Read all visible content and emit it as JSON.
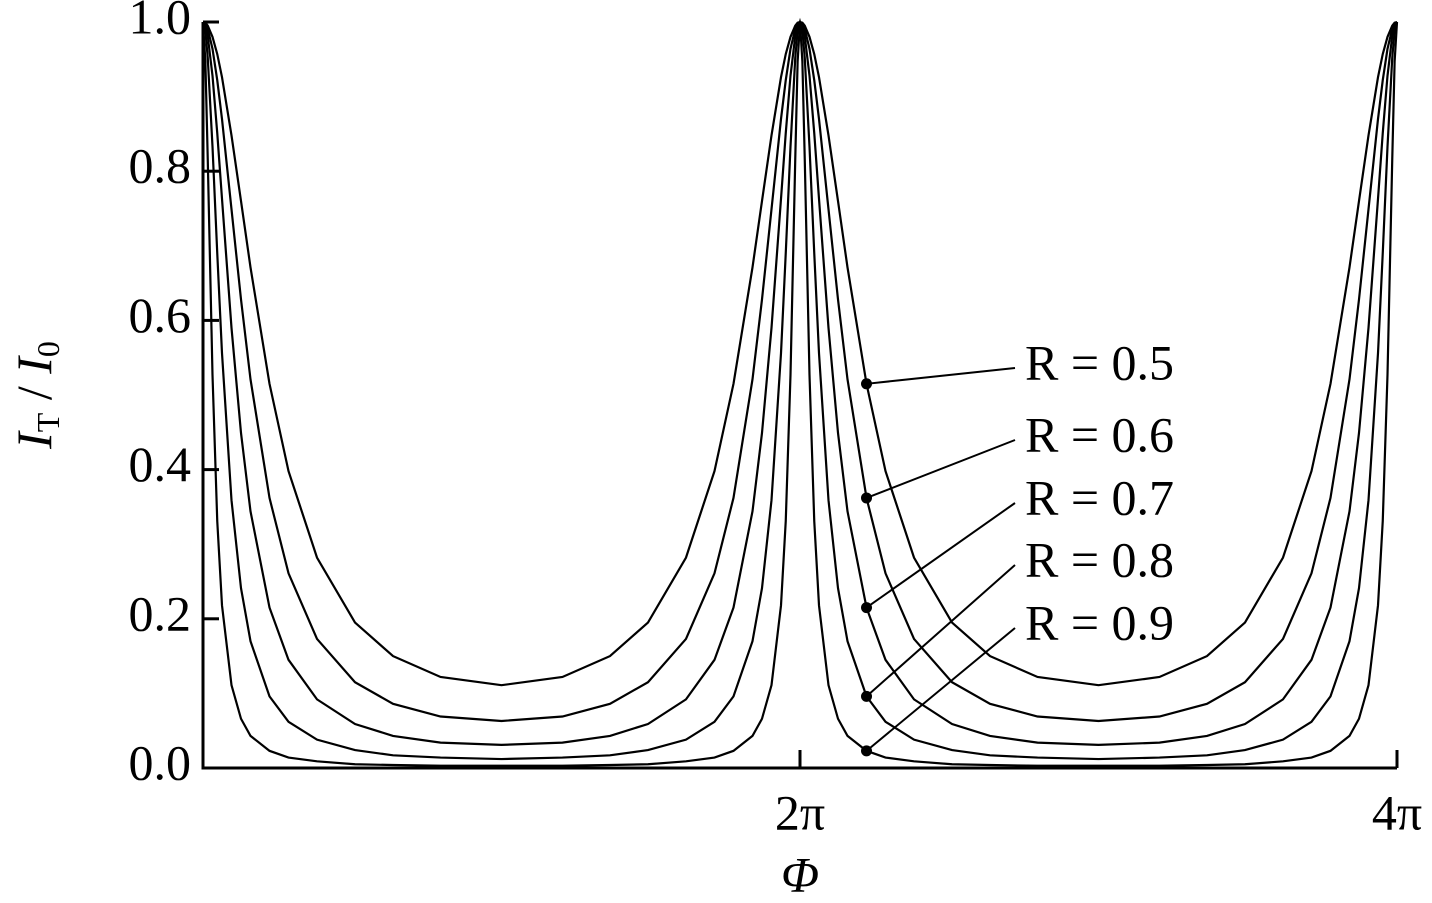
{
  "chart_data": {
    "type": "line",
    "y_label": [
      "I",
      "T",
      " / ",
      "I",
      "0"
    ],
    "x_label": "Φ",
    "xlim": [
      0,
      12.5664
    ],
    "ylim": [
      0,
      1
    ],
    "xticks": [
      {
        "value": 6.2832,
        "label": "2π"
      },
      {
        "value": 12.5664,
        "label": "4π"
      }
    ],
    "yticks": [
      {
        "value": 0,
        "label": "0.0"
      },
      0.2,
      0.4,
      0.6,
      0.8,
      {
        "value": 1,
        "label": "1.0"
      }
    ],
    "x": [
      0,
      0.025,
      0.05,
      0.1,
      0.15,
      0.2,
      0.3,
      0.4,
      0.5,
      0.7,
      0.9,
      1.2,
      1.6,
      2.0,
      2.5,
      3.1416,
      3.7832,
      4.2832,
      4.6832,
      5.0832,
      5.3832,
      5.5832,
      5.7832,
      5.8832,
      5.9832,
      6.0832,
      6.1332,
      6.1832,
      6.2332,
      6.2582,
      6.2832,
      6.3082,
      6.3332,
      6.3832,
      6.4332,
      6.4832,
      6.5832,
      6.6832,
      6.7832,
      6.9832,
      7.1832,
      7.4832,
      7.8832,
      8.2832,
      8.7832,
      9.4248,
      10.0664,
      10.5664,
      10.9664,
      11.3664,
      11.6664,
      11.8664,
      12.0664,
      12.1664,
      12.2664,
      12.3664,
      12.4164,
      12.4664,
      12.5164,
      12.5414,
      12.5664
    ],
    "series": [
      {
        "name": "R = 0.5",
        "color": "#000000",
        "values": [
          1,
          0.999,
          0.995,
          0.98,
          0.957,
          0.926,
          0.848,
          0.76,
          0.671,
          0.515,
          0.398,
          0.282,
          0.195,
          0.15,
          0.122,
          0.111,
          0.122,
          0.15,
          0.195,
          0.282,
          0.398,
          0.515,
          0.671,
          0.76,
          0.848,
          0.926,
          0.957,
          0.98,
          0.995,
          0.999,
          1,
          0.999,
          0.995,
          0.98,
          0.957,
          0.926,
          0.848,
          0.76,
          0.671,
          0.515,
          0.398,
          0.282,
          0.195,
          0.15,
          0.122,
          0.111,
          0.122,
          0.15,
          0.195,
          0.282,
          0.398,
          0.515,
          0.671,
          0.76,
          0.848,
          0.926,
          0.957,
          0.98,
          0.995,
          0.999,
          1
        ]
      },
      {
        "name": "R = 0.6",
        "color": "#000000",
        "values": [
          1,
          0.998,
          0.991,
          0.964,
          0.922,
          0.87,
          0.749,
          0.628,
          0.521,
          0.362,
          0.261,
          0.173,
          0.115,
          0.086,
          0.069,
          0.063,
          0.069,
          0.086,
          0.115,
          0.173,
          0.261,
          0.362,
          0.521,
          0.628,
          0.749,
          0.87,
          0.922,
          0.964,
          0.991,
          0.998,
          1,
          0.998,
          0.991,
          0.964,
          0.922,
          0.87,
          0.749,
          0.628,
          0.521,
          0.362,
          0.261,
          0.173,
          0.115,
          0.086,
          0.069,
          0.063,
          0.069,
          0.086,
          0.115,
          0.173,
          0.261,
          0.362,
          0.521,
          0.628,
          0.749,
          0.87,
          0.922,
          0.964,
          0.991,
          0.998,
          1
        ]
      },
      {
        "name": "R = 0.7",
        "color": "#000000",
        "values": [
          1,
          0.995,
          0.981,
          0.928,
          0.851,
          0.763,
          0.59,
          0.449,
          0.344,
          0.215,
          0.145,
          0.092,
          0.059,
          0.043,
          0.034,
          0.031,
          0.034,
          0.043,
          0.059,
          0.092,
          0.145,
          0.215,
          0.344,
          0.449,
          0.59,
          0.763,
          0.851,
          0.928,
          0.981,
          0.995,
          1,
          0.995,
          0.981,
          0.928,
          0.851,
          0.763,
          0.59,
          0.449,
          0.344,
          0.215,
          0.145,
          0.092,
          0.059,
          0.043,
          0.034,
          0.031,
          0.034,
          0.043,
          0.059,
          0.092,
          0.145,
          0.215,
          0.344,
          0.449,
          0.59,
          0.763,
          0.851,
          0.928,
          0.981,
          0.995,
          1
        ]
      },
      {
        "name": "R = 0.8",
        "color": "#000000",
        "values": [
          1,
          0.988,
          0.952,
          0.833,
          0.69,
          0.556,
          0.359,
          0.241,
          0.17,
          0.096,
          0.062,
          0.038,
          0.024,
          0.017,
          0.014,
          0.012,
          0.014,
          0.017,
          0.024,
          0.038,
          0.062,
          0.096,
          0.17,
          0.241,
          0.359,
          0.556,
          0.69,
          0.833,
          0.952,
          0.988,
          1,
          0.988,
          0.952,
          0.833,
          0.69,
          0.556,
          0.359,
          0.241,
          0.17,
          0.096,
          0.062,
          0.038,
          0.024,
          0.017,
          0.014,
          0.012,
          0.014,
          0.017,
          0.024,
          0.038,
          0.062,
          0.096,
          0.17,
          0.241,
          0.359,
          0.556,
          0.69,
          0.833,
          0.952,
          0.988,
          1
        ]
      },
      {
        "name": "R = 0.9",
        "color": "#000000",
        "values": [
          1,
          0.947,
          0.816,
          0.527,
          0.331,
          0.218,
          0.111,
          0.066,
          0.043,
          0.023,
          0.014,
          0.009,
          0.005,
          0.004,
          0.003,
          0.003,
          0.003,
          0.004,
          0.005,
          0.009,
          0.014,
          0.023,
          0.043,
          0.066,
          0.111,
          0.218,
          0.331,
          0.527,
          0.816,
          0.947,
          1,
          0.947,
          0.816,
          0.527,
          0.331,
          0.218,
          0.111,
          0.066,
          0.043,
          0.023,
          0.014,
          0.009,
          0.005,
          0.004,
          0.003,
          0.003,
          0.003,
          0.004,
          0.005,
          0.009,
          0.014,
          0.023,
          0.043,
          0.066,
          0.111,
          0.218,
          0.331,
          0.527,
          0.816,
          0.947,
          1
        ]
      }
    ]
  }
}
